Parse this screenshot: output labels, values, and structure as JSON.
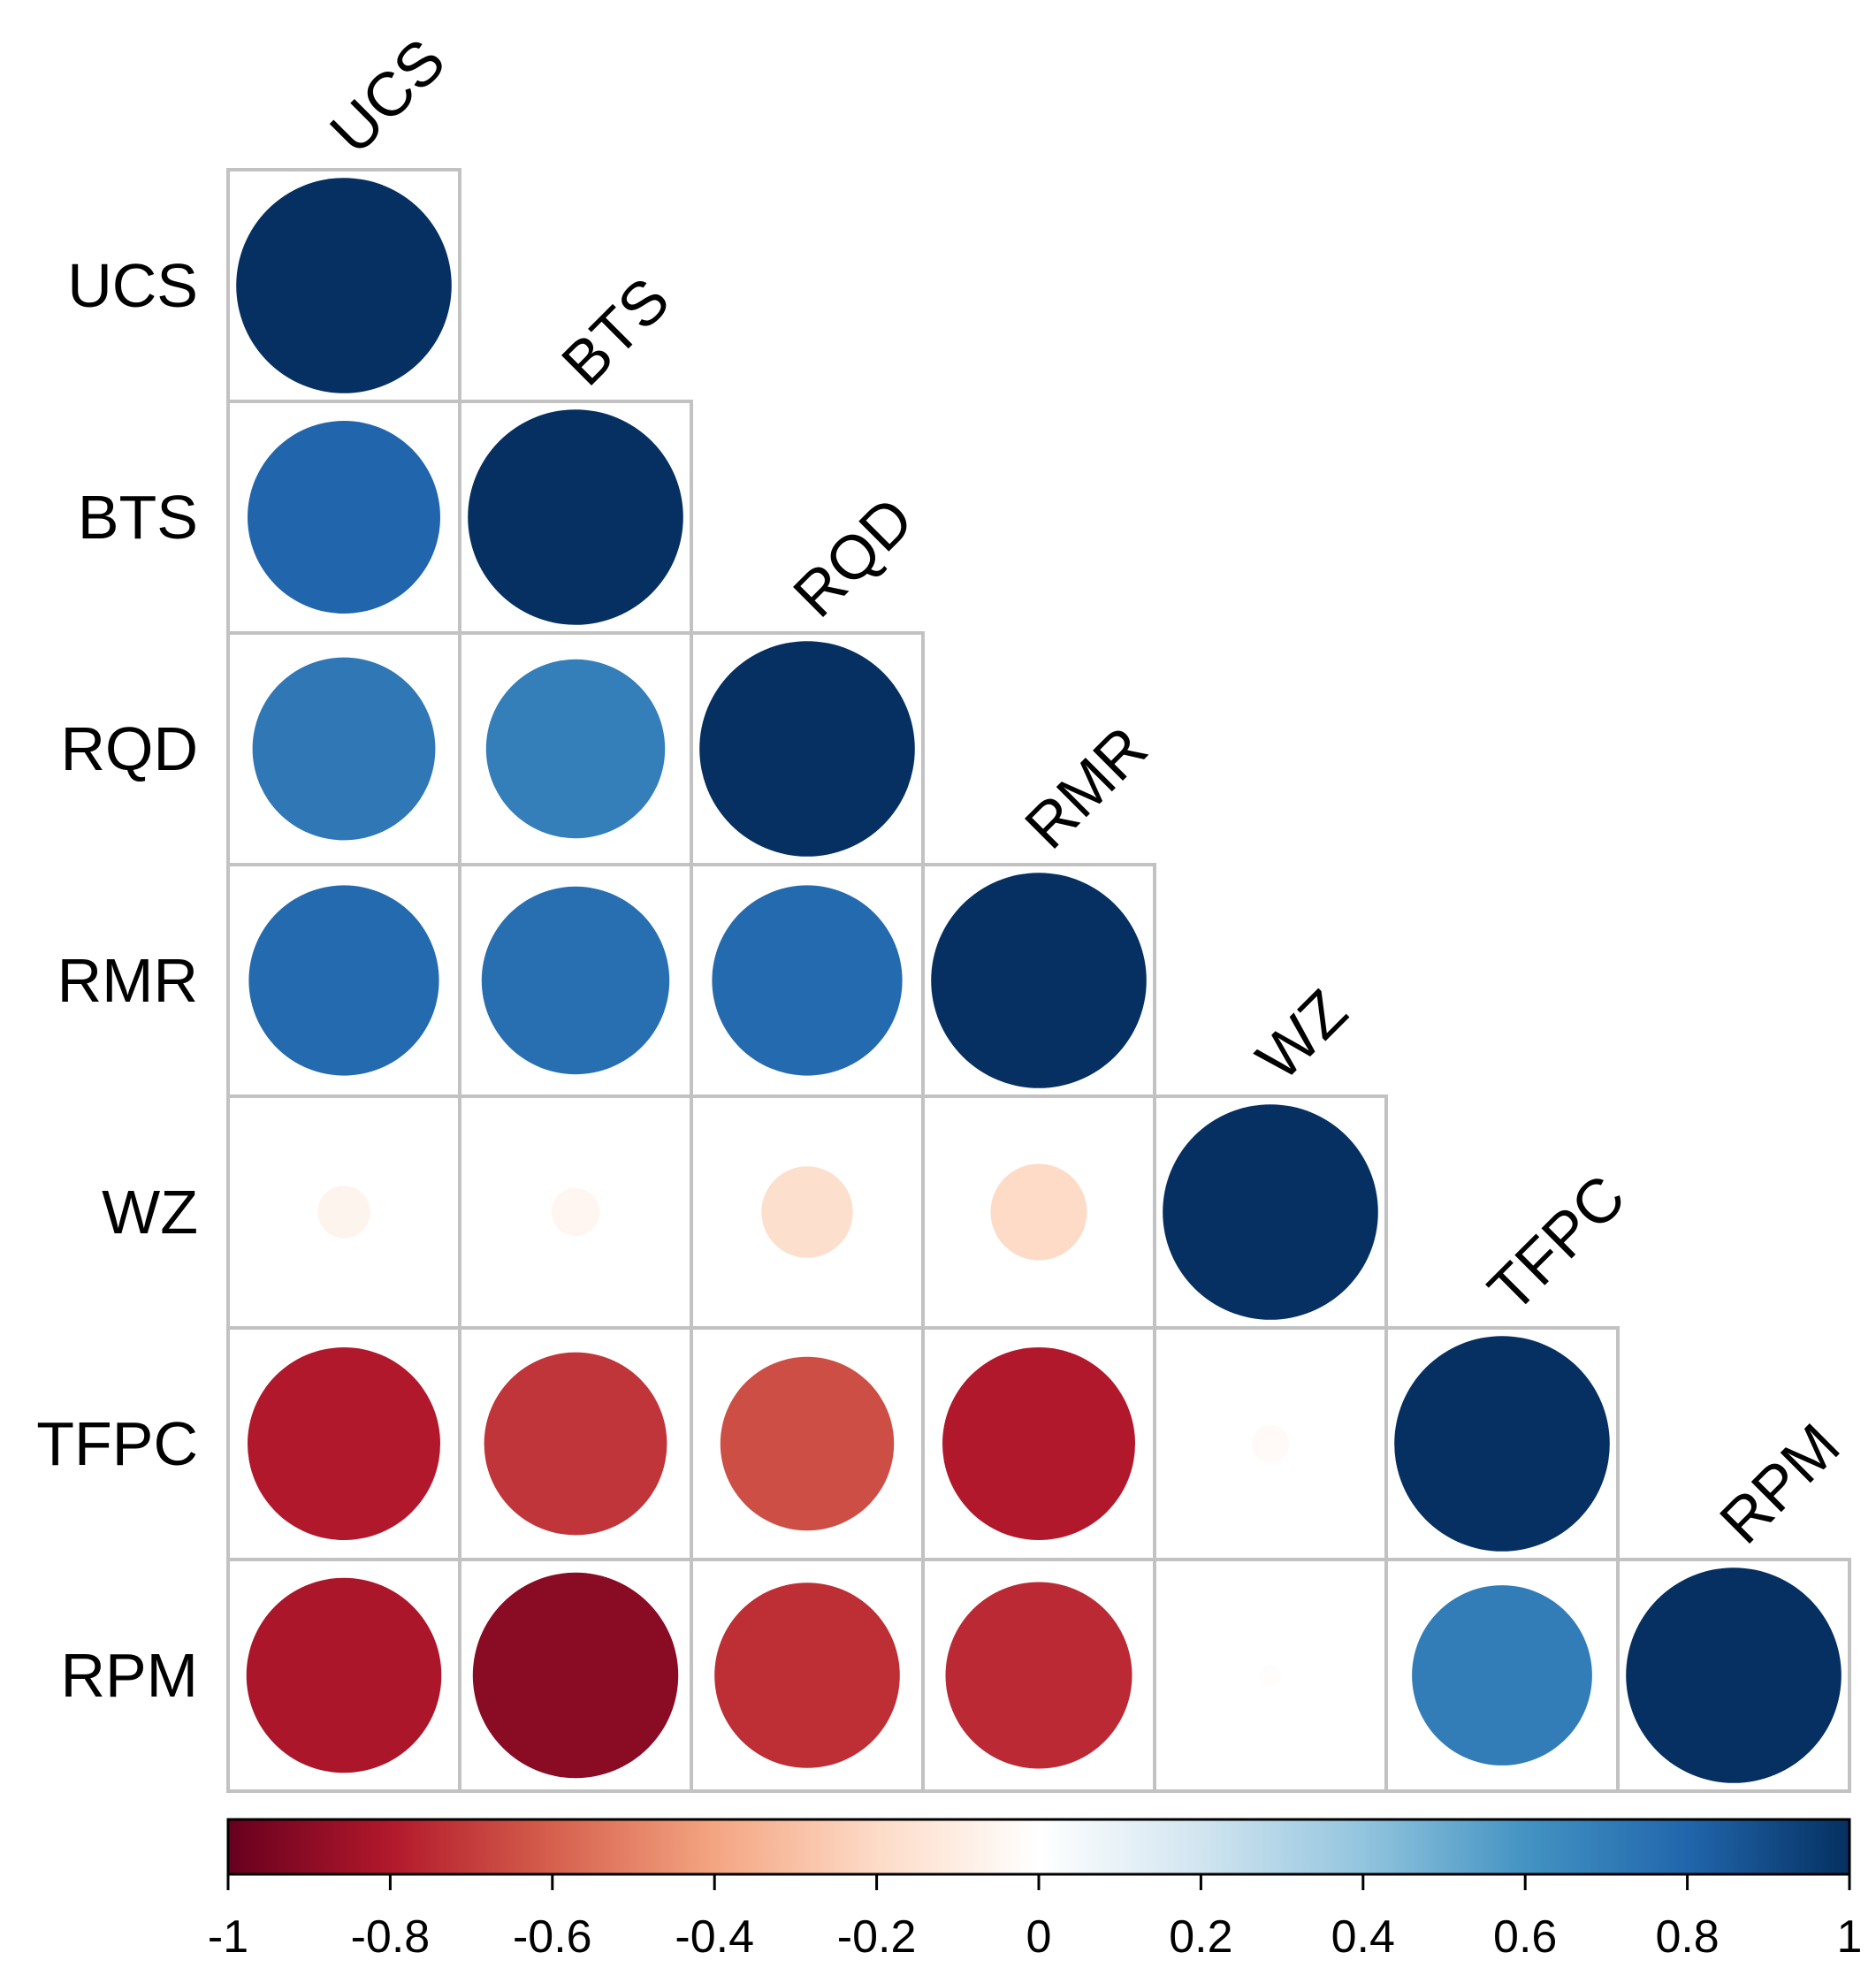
{
  "chart_data": {
    "type": "heatmap",
    "subtype": "correlation-circles-lower-triangle",
    "title": "",
    "variables": [
      "UCS",
      "BTS",
      "RQD",
      "RMR",
      "WZ",
      "TFPC",
      "RPM"
    ],
    "matrix": [
      [
        1.0,
        0.8,
        0.72,
        0.78,
        -0.06,
        -0.8,
        -0.82
      ],
      [
        0.8,
        1.0,
        0.69,
        0.76,
        -0.05,
        -0.72,
        -0.91
      ],
      [
        0.72,
        0.69,
        1.0,
        0.78,
        -0.18,
        -0.65,
        -0.74
      ],
      [
        0.78,
        0.76,
        0.78,
        1.0,
        -0.2,
        -0.8,
        -0.75
      ],
      [
        -0.06,
        -0.05,
        -0.18,
        -0.2,
        1.0,
        -0.03,
        -0.01
      ],
      [
        -0.8,
        -0.72,
        -0.65,
        -0.8,
        -0.03,
        1.0,
        0.7
      ],
      [
        -0.82,
        -0.91,
        -0.74,
        -0.75,
        -0.01,
        0.7,
        1.0
      ]
    ],
    "colorbar": {
      "min": -1,
      "max": 1,
      "ticks": [
        "-1",
        "-0.8",
        "-0.6",
        "-0.4",
        "-0.2",
        "0",
        "0.2",
        "0.4",
        "0.6",
        "0.8",
        "1"
      ],
      "colors": [
        "#67001f",
        "#b2182b",
        "#d6604d",
        "#f4a582",
        "#fddbc7",
        "#ffffff",
        "#d1e5f0",
        "#92c5de",
        "#4393c3",
        "#2166ac",
        "#053061"
      ]
    },
    "legend_position": "bottom"
  }
}
